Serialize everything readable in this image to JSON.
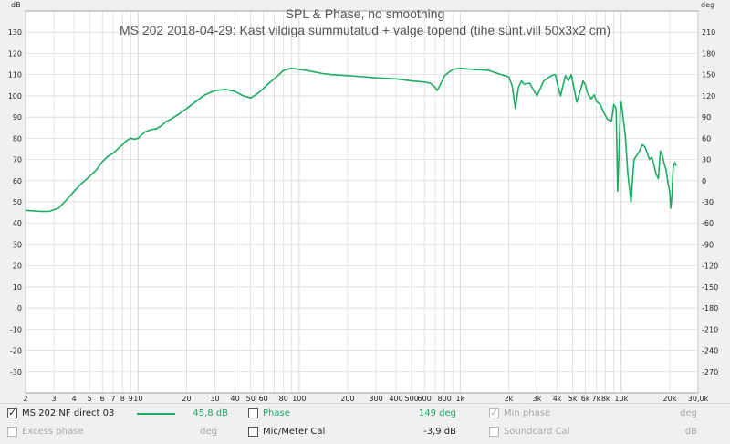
{
  "chart_data": {
    "type": "line",
    "title": "SPL & Phase, no smoothing",
    "subtitle": "MS 202 2018-04-29: Kast vildiga summutatud + valge topend (tihe sünt.vill 50x3x2 cm)",
    "y_left_unit": "dB",
    "y_right_unit": "deg",
    "x_scale": "log",
    "xlim": [
      2,
      30000
    ],
    "ylim_left": [
      -40,
      140
    ],
    "ylim_right": [
      -300,
      240
    ],
    "grid": true,
    "x_ticks": [
      {
        "v": 2,
        "label": "2"
      },
      {
        "v": 3,
        "label": "3"
      },
      {
        "v": 4,
        "label": "4"
      },
      {
        "v": 5,
        "label": "5"
      },
      {
        "v": 6,
        "label": "6"
      },
      {
        "v": 7,
        "label": "7"
      },
      {
        "v": 8,
        "label": "8"
      },
      {
        "v": 9,
        "label": "9"
      },
      {
        "v": 10,
        "label": "10"
      },
      {
        "v": 20,
        "label": "20"
      },
      {
        "v": 30,
        "label": "30"
      },
      {
        "v": 40,
        "label": "40"
      },
      {
        "v": 50,
        "label": "50"
      },
      {
        "v": 60,
        "label": "60"
      },
      {
        "v": 80,
        "label": "80"
      },
      {
        "v": 100,
        "label": "100"
      },
      {
        "v": 200,
        "label": "200"
      },
      {
        "v": 300,
        "label": "300"
      },
      {
        "v": 400,
        "label": "400"
      },
      {
        "v": 500,
        "label": "500"
      },
      {
        "v": 600,
        "label": "600"
      },
      {
        "v": 800,
        "label": "800"
      },
      {
        "v": 1000,
        "label": "1k"
      },
      {
        "v": 2000,
        "label": "2k"
      },
      {
        "v": 3000,
        "label": "3k"
      },
      {
        "v": 4000,
        "label": "4k"
      },
      {
        "v": 5000,
        "label": "5k"
      },
      {
        "v": 6000,
        "label": "6k"
      },
      {
        "v": 7000,
        "label": "7k"
      },
      {
        "v": 8000,
        "label": "8k"
      },
      {
        "v": 10000,
        "label": "10k"
      },
      {
        "v": 20000,
        "label": "20k"
      },
      {
        "v": 30000,
        "label": "30,0k"
      }
    ],
    "y_left_ticks": [
      130,
      120,
      110,
      100,
      90,
      80,
      70,
      60,
      50,
      40,
      30,
      20,
      10,
      0,
      -10,
      -20,
      -30
    ],
    "y_right_ticks": [
      210,
      180,
      150,
      120,
      90,
      60,
      30,
      0,
      -30,
      -60,
      -90,
      -120,
      -150,
      -180,
      -210,
      -240,
      -270
    ],
    "series": [
      {
        "name": "MS 202 NF direct 03",
        "color": "#1dab64",
        "x": [
          2,
          2.5,
          2.8,
          3.2,
          3.6,
          4,
          4.5,
          5,
          5.5,
          6,
          6.5,
          7,
          7.5,
          8,
          8.5,
          9,
          9.5,
          10,
          11,
          12,
          13,
          14,
          15,
          16,
          18,
          20,
          23,
          26,
          30,
          35,
          40,
          45,
          50,
          55,
          60,
          65,
          70,
          75,
          80,
          90,
          100,
          110,
          120,
          140,
          160,
          200,
          250,
          300,
          400,
          500,
          600,
          650,
          700,
          720,
          750,
          800,
          900,
          1000,
          1200,
          1500,
          1800,
          2000,
          2100,
          2200,
          2300,
          2400,
          2500,
          2700,
          3000,
          3300,
          3600,
          3800,
          3900,
          4000,
          4200,
          4500,
          4700,
          4900,
          5000,
          5300,
          5600,
          5800,
          6000,
          6200,
          6500,
          6800,
          7000,
          7400,
          7800,
          8200,
          8700,
          9000,
          9300,
          9500,
          9700,
          9900,
          10000,
          10200,
          10600,
          11000,
          11500,
          12000,
          12500,
          13000,
          13500,
          14000,
          14500,
          15000,
          15500,
          16000,
          16500,
          17000,
          17500,
          18000,
          18500,
          19000,
          19500,
          20000,
          20300,
          20600,
          21000,
          21500,
          22000
        ],
        "y": [
          46,
          45.5,
          45.5,
          47,
          51,
          55,
          59,
          62,
          65,
          69,
          71.5,
          73,
          75,
          77,
          79,
          80,
          79.5,
          80,
          83,
          84,
          84.5,
          86,
          88,
          89,
          91.5,
          94,
          97.5,
          100.5,
          102.5,
          103,
          102,
          100,
          99,
          101,
          103.5,
          106,
          108,
          110,
          112,
          113,
          112.5,
          112,
          111.5,
          110.5,
          110,
          109.5,
          109,
          108.5,
          108,
          107,
          106.5,
          106,
          104,
          102.5,
          105,
          109.5,
          112.5,
          113,
          112.5,
          112,
          110,
          109,
          105,
          94,
          104,
          107,
          105.5,
          106,
          100,
          107,
          109,
          110,
          110,
          106,
          100,
          109.5,
          107,
          110,
          106.5,
          97,
          103,
          107,
          105,
          101,
          98.5,
          100.5,
          97.5,
          96,
          92,
          89,
          88,
          96,
          94,
          55,
          75,
          97,
          97,
          92,
          81,
          63,
          50,
          70,
          72,
          74,
          77,
          76,
          73,
          70,
          71,
          67,
          63,
          61,
          74,
          72,
          68,
          65,
          59,
          55,
          47,
          52,
          66,
          68.5,
          67
        ]
      }
    ],
    "legend_placement": "bottom"
  },
  "legend": {
    "row1": {
      "trace_name": "MS 202 NF direct 03",
      "trace_value": "45,8 dB",
      "phase_label": "Phase",
      "phase_value": "149 deg",
      "minphase_label": "Min phase",
      "minphase_unit": "deg"
    },
    "row2": {
      "excess_label": "Excess phase",
      "excess_unit": "deg",
      "mic_label": "Mic/Meter Cal",
      "mic_value": "-3,9 dB",
      "soundcard_label": "Soundcard Cal",
      "soundcard_unit": "dB"
    },
    "check_glyph": "✓",
    "colors": {
      "trace": "#1dab64",
      "grid": "#d6d6d6",
      "plot_bg": "#ffffff"
    }
  }
}
